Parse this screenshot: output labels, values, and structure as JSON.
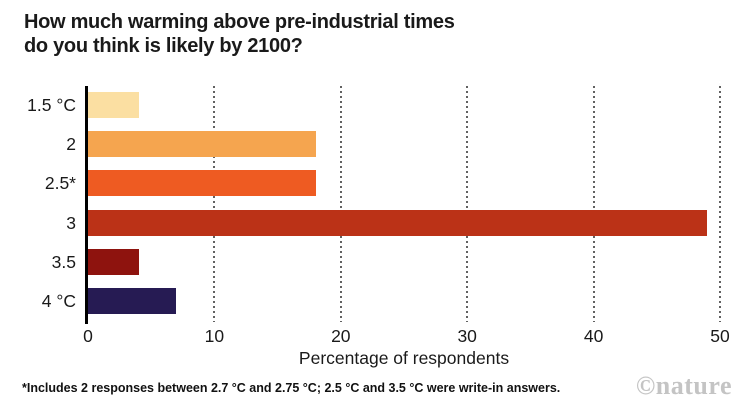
{
  "title": "How much warming above pre-industrial times\ndo you think is likely by 2100?",
  "footnote": "*Includes 2 responses between 2.7 °C and 2.75 °C; 2.5 °C and 3.5 °C were write-in answers.",
  "watermark": "©nature",
  "chart_data": {
    "type": "bar",
    "orientation": "horizontal",
    "title": "How much warming above pre-industrial times do you think is likely by 2100?",
    "categories": [
      "1.5 °C",
      "2",
      "2.5*",
      "3",
      "3.5",
      "4 °C"
    ],
    "values": [
      4,
      18,
      18,
      49,
      4,
      7
    ],
    "bar_colors": [
      "#fbdfa2",
      "#f5a54f",
      "#ee5b22",
      "#bb3217",
      "#8e130e",
      "#261b53"
    ],
    "xlabel": "Percentage of respondents",
    "x_ticks": [
      0,
      10,
      20,
      30,
      40,
      50
    ],
    "xlim": [
      0,
      50
    ],
    "grid": "vertical dotted gridlines at each x tick",
    "legend": "none"
  },
  "colors": {
    "background": "#ffffff",
    "title_text": "#1a1a1a",
    "axis_line": "#000000",
    "gridline": "#616161",
    "watermark": "#c4c4c4"
  }
}
